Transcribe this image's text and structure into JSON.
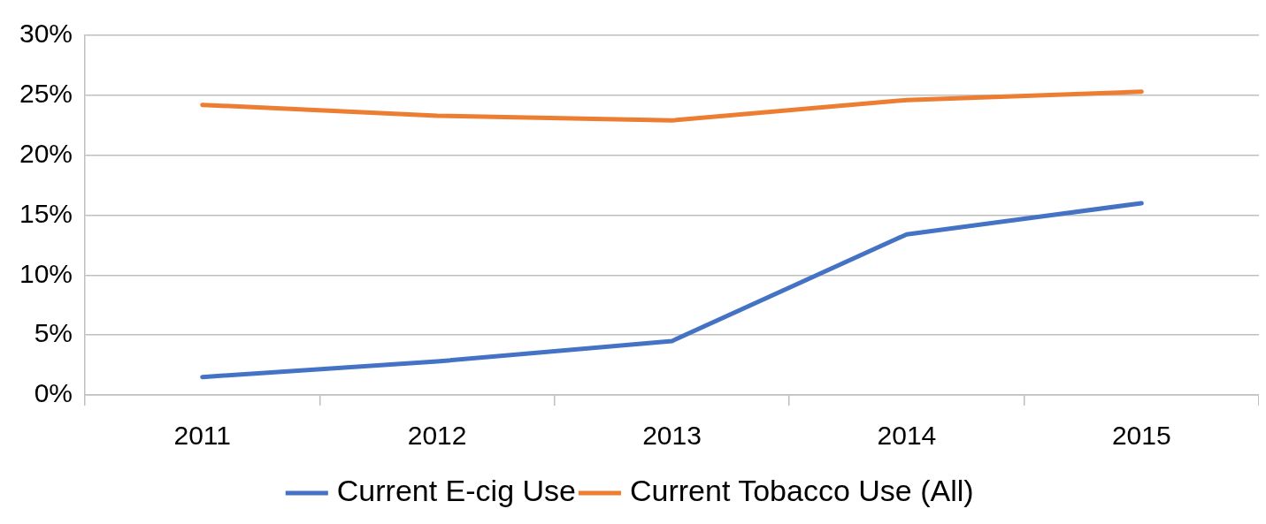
{
  "chart_data": {
    "type": "line",
    "categories": [
      "2011",
      "2012",
      "2013",
      "2014",
      "2015"
    ],
    "series": [
      {
        "name": "Current E-cig Use",
        "color": "#4472c4",
        "values": [
          1.5,
          2.8,
          4.5,
          13.4,
          16.0
        ]
      },
      {
        "name": "Current Tobacco Use (All)",
        "color": "#ed7d31",
        "values": [
          24.2,
          23.3,
          22.9,
          24.6,
          25.3
        ]
      }
    ],
    "ylim": [
      0,
      30
    ],
    "yticks": [
      {
        "value": 0,
        "label": "0%"
      },
      {
        "value": 5,
        "label": "5%"
      },
      {
        "value": 10,
        "label": "10%"
      },
      {
        "value": 15,
        "label": "15%"
      },
      {
        "value": 20,
        "label": "20%"
      },
      {
        "value": 25,
        "label": "25%"
      },
      {
        "value": 30,
        "label": "30%"
      }
    ],
    "grid": "y",
    "legend": "bottom",
    "marker": "none",
    "line_style": "solid"
  }
}
